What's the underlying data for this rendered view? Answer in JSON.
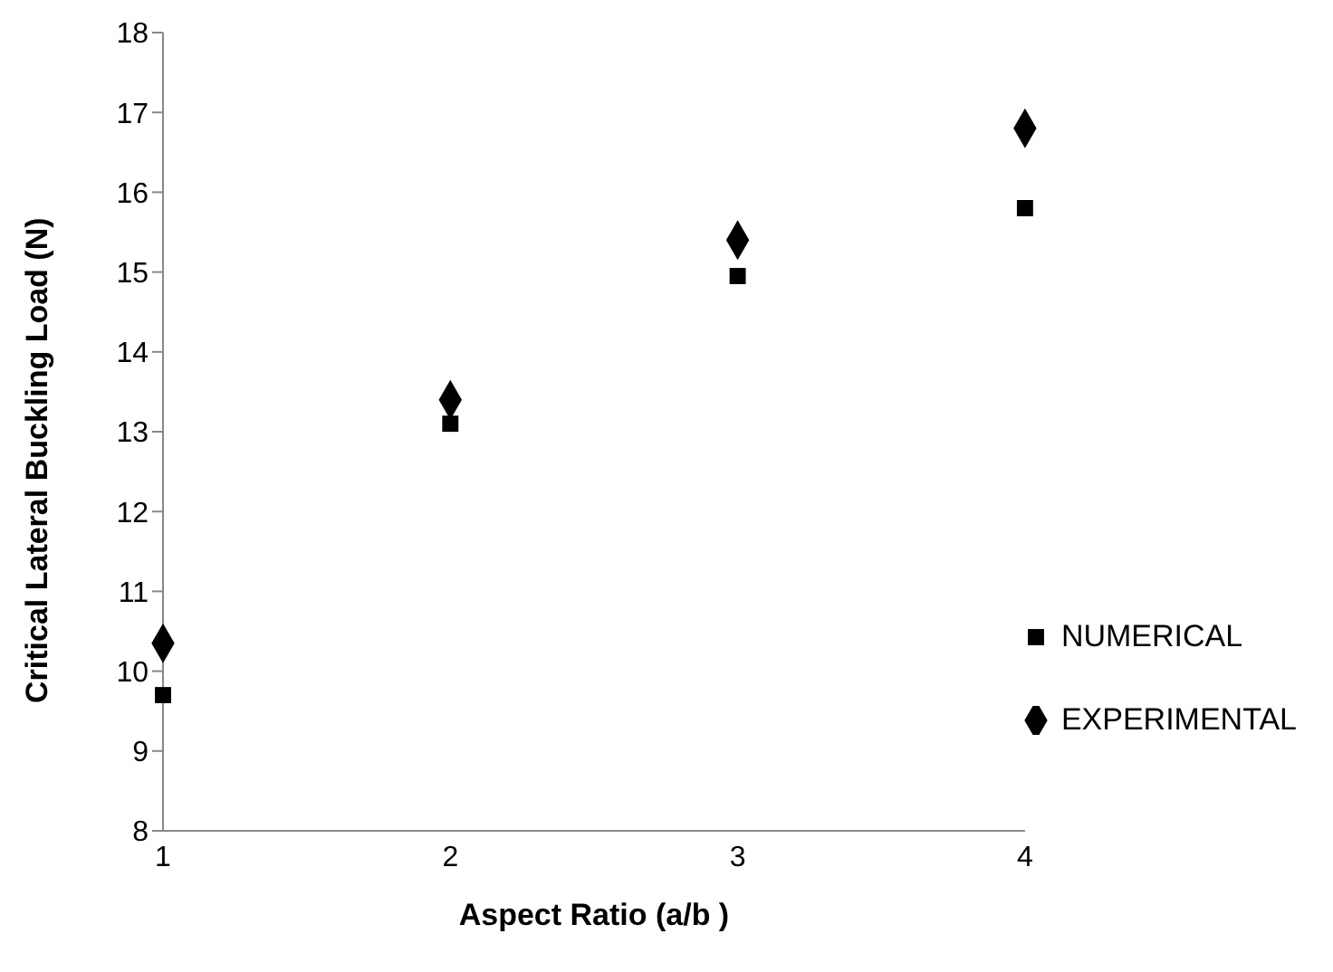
{
  "chart_data": {
    "type": "scatter",
    "xlabel": "Aspect Ratio (a/b )",
    "ylabel": "Critical Lateral Buckling Load (N)",
    "categories": [
      "1",
      "2",
      "3",
      "4"
    ],
    "series": [
      {
        "name": "NUMERICAL",
        "color": "#000000",
        "marker": "square",
        "values": [
          9.7,
          13.1,
          14.95,
          15.8
        ]
      },
      {
        "name": "EXPERIMENTAL",
        "color": "#000000",
        "marker": "diamond",
        "values": [
          10.35,
          13.4,
          15.4,
          16.8
        ]
      }
    ],
    "ylim": [
      8,
      18
    ],
    "yticks": [
      8,
      9,
      10,
      11,
      12,
      13,
      14,
      15,
      16,
      17,
      18
    ],
    "grid": false,
    "legend": "bottom right"
  }
}
